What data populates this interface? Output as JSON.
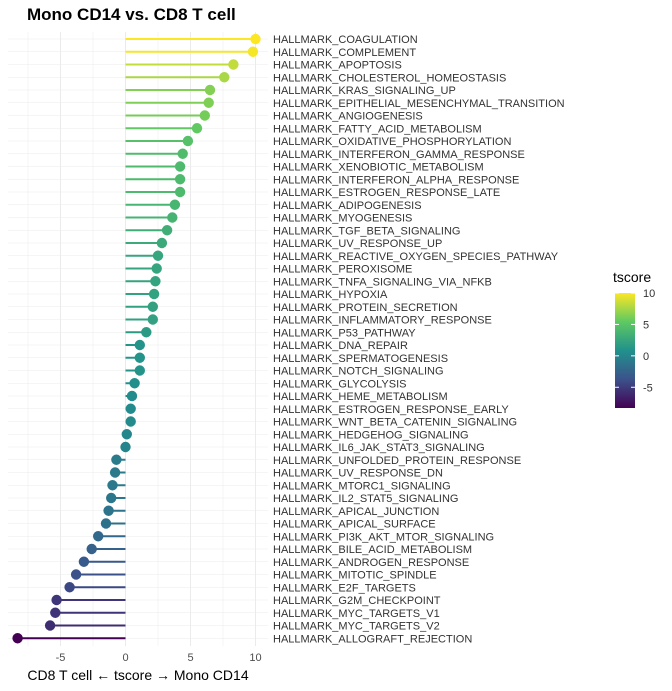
{
  "chart_data": {
    "type": "lollipop",
    "title": "Mono CD14 vs. CD8 T cell",
    "xlabel": "CD8 T cell ← tscore → Mono CD14",
    "ylabel": "",
    "xlim": [
      -8.3,
      10.8
    ],
    "x_ticks": [
      -5,
      0,
      5,
      10
    ],
    "x_tick_labels": [
      "-5",
      "0",
      "5",
      "10"
    ],
    "grid": true,
    "legend": {
      "title": "tscore",
      "placement": "right",
      "type": "colorbar",
      "range": [
        -8.3,
        10
      ],
      "ticks": [
        10,
        5,
        0,
        -5
      ],
      "tick_labels": [
        "10",
        "5",
        "0",
        "-5"
      ],
      "palette": [
        "#440154",
        "#3b528b",
        "#21918c",
        "#5ec962",
        "#fde725"
      ]
    },
    "categories": [
      "HALLMARK_COAGULATION",
      "HALLMARK_COMPLEMENT",
      "HALLMARK_APOPTOSIS",
      "HALLMARK_CHOLESTEROL_HOMEOSTASIS",
      "HALLMARK_KRAS_SIGNALING_UP",
      "HALLMARK_EPITHELIAL_MESENCHYMAL_TRANSITION",
      "HALLMARK_ANGIOGENESIS",
      "HALLMARK_FATTY_ACID_METABOLISM",
      "HALLMARK_OXIDATIVE_PHOSPHORYLATION",
      "HALLMARK_INTERFERON_GAMMA_RESPONSE",
      "HALLMARK_XENOBIOTIC_METABOLISM",
      "HALLMARK_INTERFERON_ALPHA_RESPONSE",
      "HALLMARK_ESTROGEN_RESPONSE_LATE",
      "HALLMARK_ADIPOGENESIS",
      "HALLMARK_MYOGENESIS",
      "HALLMARK_TGF_BETA_SIGNALING",
      "HALLMARK_UV_RESPONSE_UP",
      "HALLMARK_REACTIVE_OXYGEN_SPECIES_PATHWAY",
      "HALLMARK_PEROXISOME",
      "HALLMARK_TNFA_SIGNALING_VIA_NFKB",
      "HALLMARK_HYPOXIA",
      "HALLMARK_PROTEIN_SECRETION",
      "HALLMARK_INFLAMMATORY_RESPONSE",
      "HALLMARK_P53_PATHWAY",
      "HALLMARK_DNA_REPAIR",
      "HALLMARK_SPERMATOGENESIS",
      "HALLMARK_NOTCH_SIGNALING",
      "HALLMARK_GLYCOLYSIS",
      "HALLMARK_HEME_METABOLISM",
      "HALLMARK_ESTROGEN_RESPONSE_EARLY",
      "HALLMARK_WNT_BETA_CATENIN_SIGNALING",
      "HALLMARK_HEDGEHOG_SIGNALING",
      "HALLMARK_IL6_JAK_STAT3_SIGNALING",
      "HALLMARK_UNFOLDED_PROTEIN_RESPONSE",
      "HALLMARK_UV_RESPONSE_DN",
      "HALLMARK_MTORC1_SIGNALING",
      "HALLMARK_IL2_STAT5_SIGNALING",
      "HALLMARK_APICAL_JUNCTION",
      "HALLMARK_APICAL_SURFACE",
      "HALLMARK_PI3K_AKT_MTOR_SIGNALING",
      "HALLMARK_BILE_ACID_METABOLISM",
      "HALLMARK_ANDROGEN_RESPONSE",
      "HALLMARK_MITOTIC_SPINDLE",
      "HALLMARK_E2F_TARGETS",
      "HALLMARK_G2M_CHECKPOINT",
      "HALLMARK_MYC_TARGETS_V1",
      "HALLMARK_MYC_TARGETS_V2",
      "HALLMARK_ALLOGRAFT_REJECTION"
    ],
    "values": [
      10.0,
      9.8,
      8.3,
      7.6,
      6.5,
      6.4,
      6.1,
      5.5,
      4.8,
      4.4,
      4.2,
      4.2,
      4.2,
      3.8,
      3.6,
      3.2,
      2.8,
      2.5,
      2.4,
      2.3,
      2.2,
      2.1,
      2.1,
      1.6,
      1.1,
      1.1,
      1.1,
      0.7,
      0.5,
      0.4,
      0.4,
      0.1,
      0.0,
      -0.7,
      -0.8,
      -1.0,
      -1.1,
      -1.3,
      -1.5,
      -2.1,
      -2.6,
      -3.2,
      -3.8,
      -4.3,
      -5.3,
      -5.4,
      -5.8,
      -8.3
    ]
  }
}
